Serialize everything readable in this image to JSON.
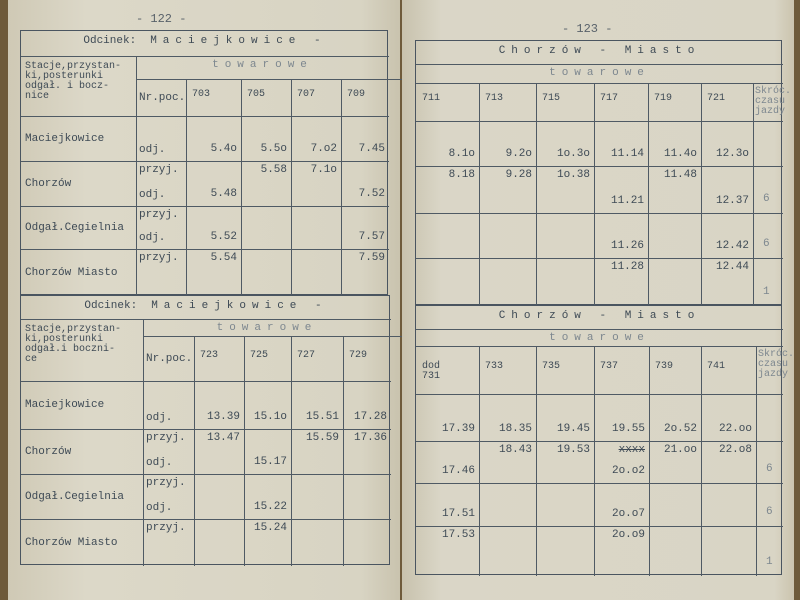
{
  "pages": [
    {
      "number": "- 122 -",
      "tables": [
        {
          "title_label": "Odcinek:",
          "title": "Maciejkowice -",
          "subtitle": "towarowe",
          "station_header": "Stacje,przystan-\nki,posterunki\nodgał. i bocz-\nnice",
          "train_header": "Nr.poc.",
          "trains": [
            "703",
            "705",
            "707",
            "709"
          ],
          "stations": [
            {
              "name": "Maciejkowice",
              "arr_label": "",
              "dep_label": "odj.",
              "arr": [
                "",
                "",
                "",
                ""
              ],
              "dep": [
                "5.4o",
                "5.5o",
                "7.o2",
                "7.45"
              ]
            },
            {
              "name": "Chorzów",
              "arr_label": "przyj.",
              "dep_label": "odj.",
              "arr": [
                "",
                "5.58",
                "7.1o",
                ""
              ],
              "dep": [
                "5.48",
                "",
                "",
                "7.52"
              ]
            },
            {
              "name": "Odgał.Cegielnia",
              "arr_label": "przyj.",
              "dep_label": "odj.",
              "arr": [
                "",
                "",
                "",
                ""
              ],
              "dep": [
                "5.52",
                "",
                "",
                "7.57"
              ]
            },
            {
              "name": "Chorzów Miasto",
              "arr_label": "przyj.",
              "dep_label": "",
              "arr": [
                "5.54",
                "",
                "",
                "7.59"
              ],
              "dep": [
                "",
                "",
                "",
                ""
              ]
            }
          ]
        },
        {
          "title_label": "Odcinek:",
          "title": "Maciejkowice -",
          "subtitle": "towarowe",
          "station_header": "Stacje,przystan-\nki,posterunki\nodgał.i boczni-\nce",
          "train_header": "Nr.poc.",
          "trains": [
            "723",
            "725",
            "727",
            "729"
          ],
          "stations": [
            {
              "name": "Maciejkowice",
              "arr_label": "",
              "dep_label": "odj.",
              "arr": [
                "",
                "",
                "",
                ""
              ],
              "dep": [
                "13.39",
                "15.1o",
                "15.51",
                "17.28"
              ]
            },
            {
              "name": "Chorzów",
              "arr_label": "przyj.",
              "dep_label": "odj.",
              "arr": [
                "13.47",
                "",
                "15.59",
                "17.36"
              ],
              "dep": [
                "",
                "15.17",
                "",
                ""
              ]
            },
            {
              "name": "Odgał.Cegielnia",
              "arr_label": "przyj.",
              "dep_label": "odj.",
              "arr": [
                "",
                "",
                "",
                ""
              ],
              "dep": [
                "",
                "15.22",
                "",
                ""
              ]
            },
            {
              "name": "Chorzów Miasto",
              "arr_label": "przyj.",
              "dep_label": "",
              "arr": [
                "",
                "15.24",
                "",
                ""
              ],
              "dep": [
                "",
                "",
                "",
                ""
              ]
            }
          ]
        }
      ]
    },
    {
      "number": "- 123 -",
      "tables": [
        {
          "title": "Chorzów - Miasto",
          "subtitle": "towarowe",
          "extra_header": "Skróc.\nczasu\njazdy",
          "trains": [
            "711",
            "713",
            "715",
            "717",
            "719",
            "721"
          ],
          "rows": [
            {
              "arr": [
                "",
                "",
                "",
                "",
                "",
                ""
              ],
              "dep": [
                "8.1o",
                "9.2o",
                "1o.3o",
                "11.14",
                "11.4o",
                "12.3o"
              ],
              "extra": ""
            },
            {
              "arr": [
                "8.18",
                "9.28",
                "1o.38",
                "",
                "11.48",
                ""
              ],
              "dep": [
                "",
                "",
                "",
                "11.21",
                "",
                "12.37"
              ],
              "extra": "6"
            },
            {
              "arr": [
                "",
                "",
                "",
                "",
                "",
                ""
              ],
              "dep": [
                "",
                "",
                "",
                "11.26",
                "",
                "12.42"
              ],
              "extra": "6"
            },
            {
              "arr": [
                "",
                "",
                "",
                "11.28",
                "",
                "12.44"
              ],
              "dep": [
                "",
                "",
                "",
                "",
                "",
                ""
              ],
              "extra": "1"
            }
          ]
        },
        {
          "title": "Chorzów - Miasto",
          "subtitle": "towarowe",
          "extra_header": "Skróc.\nczasu\njazdy",
          "trains": [
            "dod\n731",
            "733",
            "735",
            "737",
            "739",
            "741"
          ],
          "rows": [
            {
              "arr": [
                "",
                "",
                "",
                "",
                "",
                ""
              ],
              "dep": [
                "17.39",
                "18.35",
                "19.45",
                "19.55",
                "2o.52",
                "22.oo"
              ],
              "extra": ""
            },
            {
              "arr": [
                "",
                "18.43",
                "19.53",
                "xxxx",
                "21.oo",
                "22.o8"
              ],
              "dep": [
                "17.46",
                "",
                "",
                "2o.o2",
                "",
                ""
              ],
              "extra": "6"
            },
            {
              "arr": [
                "",
                "",
                "",
                "",
                "",
                ""
              ],
              "dep": [
                "17.51",
                "",
                "",
                "2o.o7",
                "",
                ""
              ],
              "extra": "6"
            },
            {
              "arr": [
                "17.53",
                "",
                "",
                "2o.o9",
                "",
                ""
              ],
              "dep": [
                "",
                "",
                "",
                "",
                "",
                ""
              ],
              "extra": "1"
            }
          ]
        }
      ]
    }
  ],
  "colors": {
    "paper": "#d9d5c5",
    "ink": "#3f4c56",
    "background": "#6e5a3a"
  }
}
